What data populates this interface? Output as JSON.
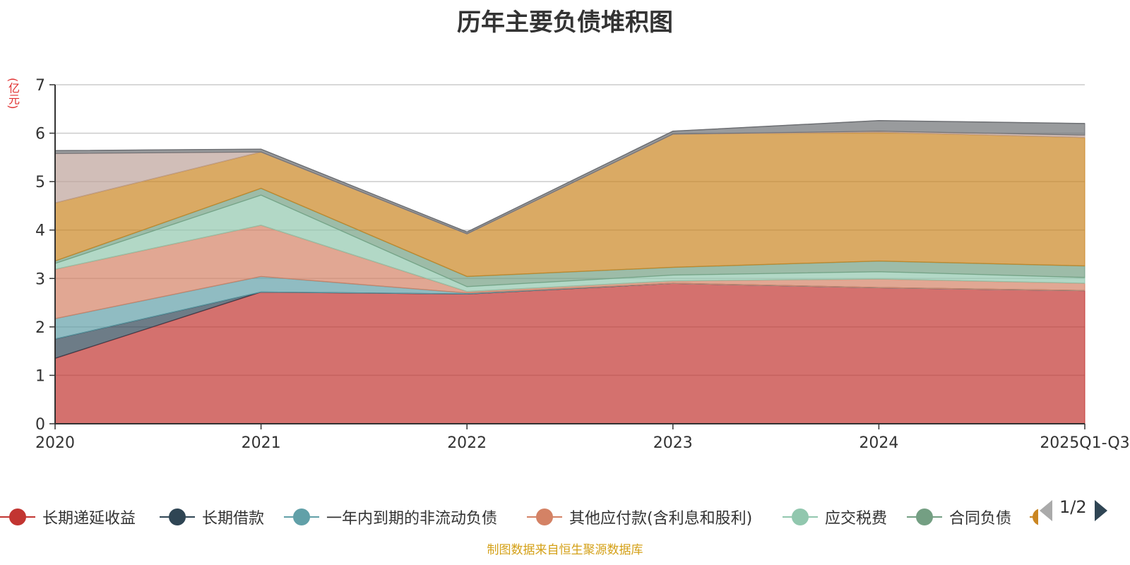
{
  "chart_data": {
    "type": "area",
    "title": "历年主要负债堆积图",
    "ylabel": "(亿元)",
    "xlabel": "",
    "categories": [
      "2020",
      "2021",
      "2022",
      "2023",
      "2024",
      "2025Q1-Q3"
    ],
    "ylim": [
      0,
      7
    ],
    "yticks": [
      "0",
      "1",
      "2",
      "3",
      "4",
      "5",
      "6",
      "7"
    ],
    "stacked": true,
    "grid": true,
    "legend_position": "bottom",
    "series": [
      {
        "name": "长期递延收益",
        "color": "#c23531",
        "values": [
          1.35,
          2.72,
          2.68,
          2.9,
          2.81,
          2.75
        ]
      },
      {
        "name": "长期借款",
        "color": "#2f4554",
        "values": [
          0.4,
          0,
          0,
          0,
          0,
          0
        ]
      },
      {
        "name": "一年内到期的非流动负债",
        "color": "#61a0a8",
        "values": [
          0.42,
          0.32,
          0.02,
          0,
          0,
          0
        ]
      },
      {
        "name": "其他应付款(含利息和股利)",
        "color": "#d48265",
        "values": [
          1.02,
          1.06,
          0.03,
          0.05,
          0.18,
          0.15
        ]
      },
      {
        "name": "应交税费",
        "color": "#91c7ae",
        "values": [
          0.12,
          0.62,
          0.1,
          0.12,
          0.15,
          0.12
        ]
      },
      {
        "name": "合同负债",
        "color": "#749f83",
        "values": [
          0.05,
          0.14,
          0.21,
          0.16,
          0.22,
          0.24
        ]
      },
      {
        "name": "",
        "color": "#ca8622",
        "values": [
          1.2,
          0.75,
          0.88,
          2.75,
          2.66,
          2.65
        ]
      },
      {
        "name": "",
        "color": "#bda29a",
        "values": [
          1.02,
          0,
          0,
          0,
          0.02,
          0.05
        ]
      },
      {
        "name": "",
        "color": "#6e7074",
        "values": [
          0.06,
          0.06,
          0.04,
          0.06,
          0.22,
          0.24
        ]
      }
    ],
    "legend_visible": [
      "长期递延收益",
      "长期借款",
      "一年内到期的非流动负债",
      "其他应付款(含利息和股利)",
      "应交税费",
      "合同负债"
    ]
  },
  "legend_pager": {
    "text": "1/2"
  },
  "source_note": "制图数据来自恒生聚源数据库"
}
